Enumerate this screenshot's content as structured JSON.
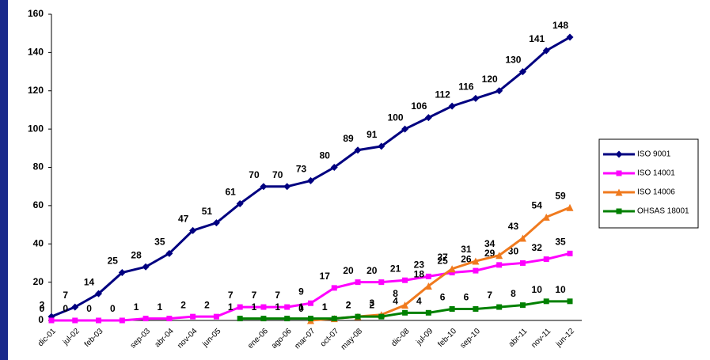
{
  "chart_data": {
    "type": "line",
    "categories": [
      "dic-01",
      "jul-02",
      "feb-03",
      null,
      "sep-03",
      "abr-04",
      "nov-04",
      "jun-05",
      null,
      "ene-06",
      "ago-06",
      "mar-07",
      "oct-07",
      "may-08",
      null,
      "dic-08",
      "jul-09",
      "feb-10",
      "sep-10",
      null,
      "abr-11",
      "nov-11",
      "jun-12"
    ],
    "series": [
      {
        "name": "ISO 9001",
        "color": "#000080",
        "marker": "diamond",
        "values": [
          2,
          7,
          14,
          25,
          28,
          35,
          47,
          51,
          61,
          70,
          70,
          73,
          80,
          89,
          91,
          100,
          106,
          112,
          116,
          120,
          130,
          141,
          148
        ]
      },
      {
        "name": "ISO 14001",
        "color": "#ff00ff",
        "marker": "square",
        "values": [
          0,
          0,
          0,
          0,
          1,
          1,
          2,
          2,
          7,
          7,
          7,
          9,
          17,
          20,
          20,
          21,
          23,
          25,
          26,
          29,
          30,
          32,
          35
        ]
      },
      {
        "name": "ISO 14006",
        "color": "#f07a1e",
        "marker": "triangle",
        "values": [
          null,
          null,
          null,
          null,
          null,
          null,
          null,
          null,
          null,
          null,
          null,
          0,
          1,
          2,
          3,
          8,
          18,
          27,
          31,
          34,
          43,
          54,
          59
        ]
      },
      {
        "name": "OHSAS 18001",
        "color": "#008000",
        "marker": "square",
        "values": [
          null,
          null,
          null,
          null,
          null,
          null,
          null,
          null,
          1,
          1,
          1,
          1,
          1,
          2,
          2,
          4,
          4,
          6,
          6,
          7,
          8,
          10,
          10
        ]
      }
    ],
    "ylim": [
      0,
      160
    ],
    "yticks": [
      0,
      20,
      40,
      60,
      80,
      100,
      120,
      140,
      160
    ],
    "grid": false,
    "legend": "right"
  }
}
